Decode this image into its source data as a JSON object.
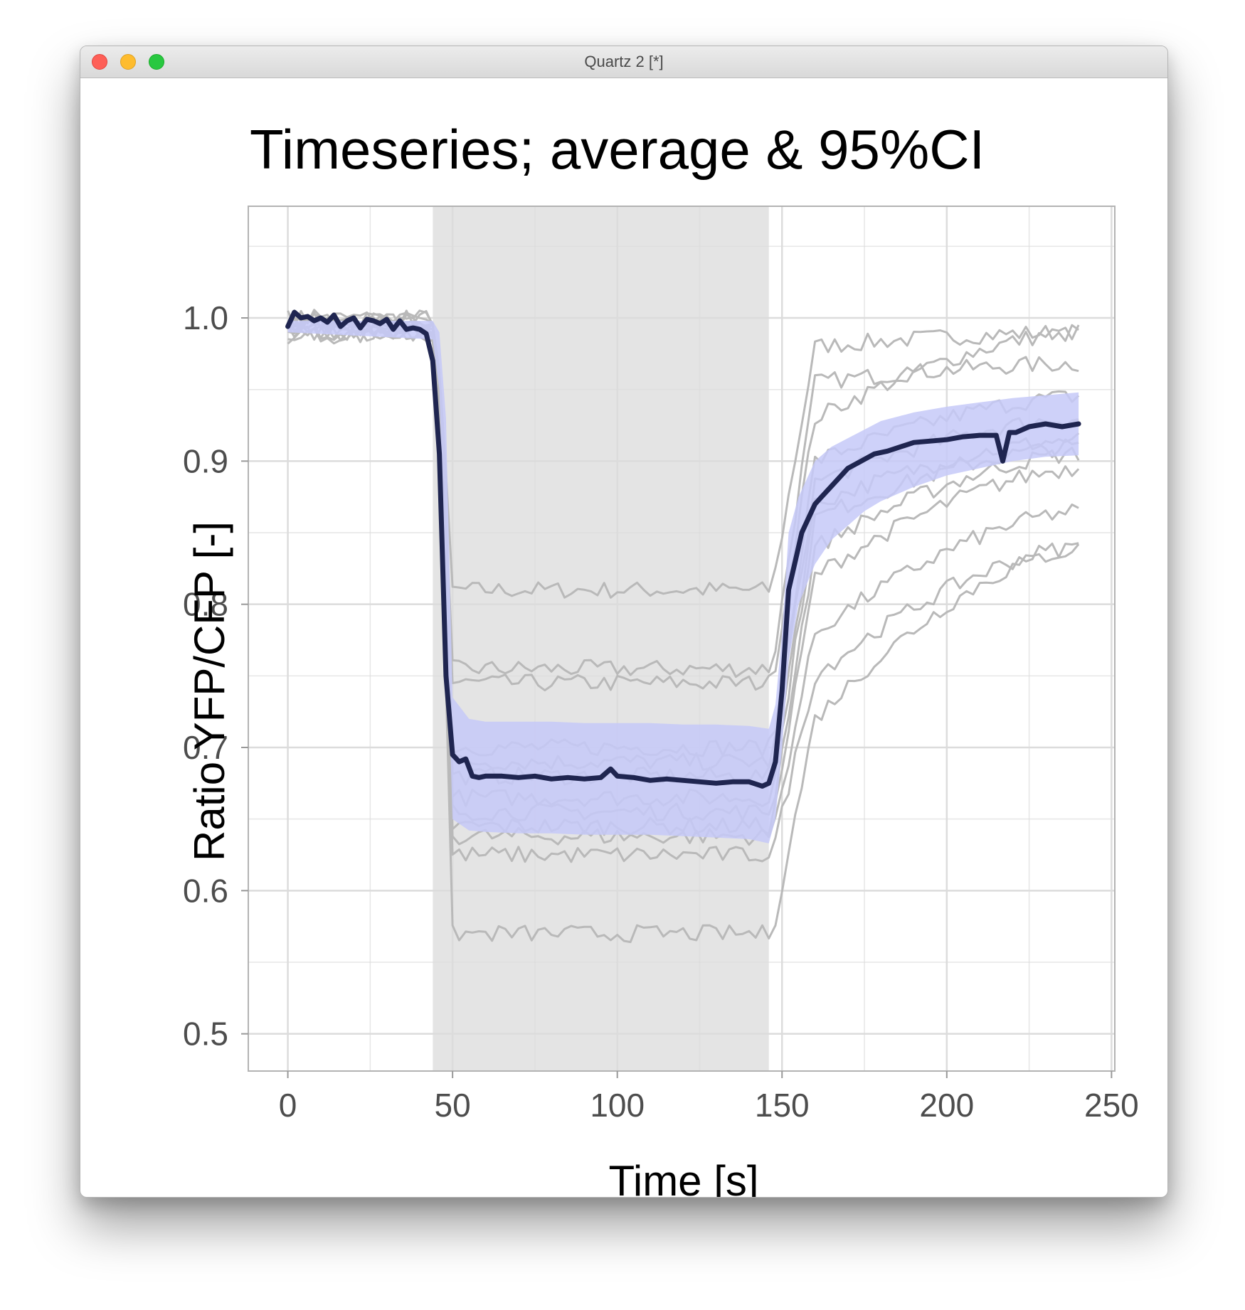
{
  "window": {
    "title": "Quartz 2 [*]",
    "buttons": [
      "close",
      "minimize",
      "zoom"
    ]
  },
  "chart_data": {
    "type": "line",
    "title": "Timeseries; average & 95%CI",
    "xlabel": "Time [s]",
    "ylabel": "Ratio YFP/CFP [-]",
    "xlim": [
      -12,
      251
    ],
    "ylim": [
      0.474,
      1.078
    ],
    "xticks": [
      0,
      50,
      100,
      150,
      200,
      250
    ],
    "xtick_labels": [
      "0",
      "50",
      "100",
      "150",
      "200",
      "250"
    ],
    "yticks": [
      0.5,
      0.6,
      0.7,
      0.8,
      0.9,
      1.0
    ],
    "ytick_labels": [
      "0.5",
      "0.6",
      "0.7",
      "0.8",
      "0.9",
      "1.0"
    ],
    "grid": true,
    "legend": "none",
    "colors": {
      "stimulus_band": "#e4e4e4",
      "individual_lines": "#b9b9b9",
      "ci_ribbon": "#c6c9f8",
      "mean_line": "#1f2550",
      "grid": "#dcdcdc"
    },
    "stimulus_band": {
      "x_start": 44,
      "x_end": 146
    },
    "mean": {
      "x": [
        0,
        2,
        4,
        6,
        8,
        10,
        12,
        14,
        16,
        18,
        20,
        22,
        24,
        26,
        28,
        30,
        32,
        34,
        36,
        38,
        40,
        42,
        44,
        46,
        48,
        50,
        52,
        54,
        56,
        58,
        60,
        65,
        70,
        75,
        80,
        85,
        90,
        95,
        98,
        100,
        105,
        110,
        115,
        120,
        125,
        130,
        135,
        140,
        144,
        146,
        148,
        150,
        152,
        154,
        156,
        158,
        160,
        162,
        164,
        166,
        168,
        170,
        174,
        178,
        182,
        186,
        190,
        195,
        200,
        205,
        210,
        215,
        217,
        219,
        221,
        225,
        230,
        235,
        240
      ],
      "y": [
        0.994,
        1.004,
        1.0,
        1.001,
        0.998,
        1.0,
        0.997,
        1.002,
        0.994,
        0.998,
        1.0,
        0.993,
        0.999,
        0.998,
        0.996,
        0.999,
        0.992,
        0.998,
        0.992,
        0.993,
        0.992,
        0.989,
        0.97,
        0.905,
        0.75,
        0.695,
        0.69,
        0.692,
        0.68,
        0.679,
        0.68,
        0.68,
        0.679,
        0.68,
        0.678,
        0.679,
        0.678,
        0.679,
        0.685,
        0.68,
        0.679,
        0.677,
        0.678,
        0.677,
        0.676,
        0.675,
        0.676,
        0.676,
        0.673,
        0.675,
        0.69,
        0.74,
        0.81,
        0.83,
        0.85,
        0.86,
        0.87,
        0.875,
        0.88,
        0.885,
        0.89,
        0.895,
        0.9,
        0.905,
        0.907,
        0.91,
        0.913,
        0.914,
        0.915,
        0.917,
        0.918,
        0.918,
        0.9,
        0.92,
        0.92,
        0.924,
        0.926,
        0.924,
        0.926
      ]
    },
    "ci_band": {
      "x": [
        0,
        44,
        46,
        48,
        50,
        55,
        60,
        70,
        80,
        90,
        100,
        110,
        120,
        130,
        140,
        146,
        148,
        150,
        152,
        155,
        160,
        165,
        170,
        175,
        180,
        190,
        200,
        210,
        220,
        230,
        240
      ],
      "lower": [
        0.99,
        0.985,
        0.95,
        0.8,
        0.65,
        0.642,
        0.641,
        0.64,
        0.64,
        0.639,
        0.639,
        0.639,
        0.638,
        0.637,
        0.636,
        0.633,
        0.65,
        0.7,
        0.76,
        0.8,
        0.828,
        0.845,
        0.855,
        0.865,
        0.872,
        0.882,
        0.89,
        0.895,
        0.9,
        0.903,
        0.904
      ],
      "upper": [
        0.998,
        0.998,
        0.99,
        0.93,
        0.735,
        0.72,
        0.718,
        0.718,
        0.718,
        0.717,
        0.717,
        0.717,
        0.716,
        0.716,
        0.715,
        0.713,
        0.73,
        0.78,
        0.85,
        0.875,
        0.9,
        0.91,
        0.916,
        0.922,
        0.928,
        0.934,
        0.938,
        0.941,
        0.944,
        0.946,
        0.948
      ]
    },
    "individual": [
      {
        "pre": 1.0,
        "stim": 0.81,
        "post": 0.98,
        "end": 0.99
      },
      {
        "pre": 1.0,
        "stim": 0.755,
        "post": 0.955,
        "end": 0.968
      },
      {
        "pre": 0.998,
        "stim": 0.745,
        "post": 0.93,
        "end": 0.99
      },
      {
        "pre": 0.995,
        "stim": 0.7,
        "post": 0.9,
        "end": 0.945
      },
      {
        "pre": 0.996,
        "stim": 0.69,
        "post": 0.885,
        "end": 0.93
      },
      {
        "pre": 0.994,
        "stim": 0.68,
        "post": 0.87,
        "end": 0.915
      },
      {
        "pre": 0.993,
        "stim": 0.665,
        "post": 0.86,
        "end": 0.91
      },
      {
        "pre": 0.992,
        "stim": 0.655,
        "post": 0.84,
        "end": 0.905
      },
      {
        "pre": 0.991,
        "stim": 0.645,
        "post": 0.82,
        "end": 0.895
      },
      {
        "pre": 0.99,
        "stim": 0.638,
        "post": 0.78,
        "end": 0.865
      },
      {
        "pre": 0.99,
        "stim": 0.625,
        "post": 0.75,
        "end": 0.84
      },
      {
        "pre": 0.988,
        "stim": 0.57,
        "post": 0.72,
        "end": 0.838
      }
    ]
  }
}
